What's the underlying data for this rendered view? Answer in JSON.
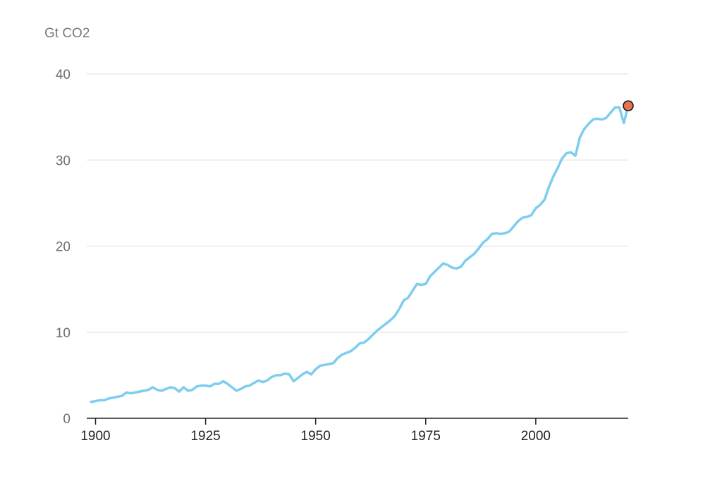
{
  "chart_data": {
    "type": "line",
    "ylabel": "Gt CO2",
    "xlim": [
      1898,
      2021
    ],
    "ylim": [
      0,
      40
    ],
    "grid": true,
    "x_ticks": [
      1900,
      1925,
      1950,
      1975,
      2000
    ],
    "y_ticks": [
      0,
      10,
      20,
      30,
      40
    ],
    "line_color": "#7dcdee",
    "marker_color": "#e8714f",
    "highlight_point": {
      "x": 2021,
      "y": 36.3
    },
    "series": [
      {
        "x": [
          1899,
          1900,
          1901,
          1902,
          1903,
          1904,
          1905,
          1906,
          1907,
          1908,
          1909,
          1910,
          1911,
          1912,
          1913,
          1914,
          1915,
          1916,
          1917,
          1918,
          1919,
          1920,
          1921,
          1922,
          1923,
          1924,
          1925,
          1926,
          1927,
          1928,
          1929,
          1930,
          1931,
          1932,
          1933,
          1934,
          1935,
          1936,
          1937,
          1938,
          1939,
          1940,
          1941,
          1942,
          1943,
          1944,
          1945,
          1946,
          1947,
          1948,
          1949,
          1950,
          1951,
          1952,
          1953,
          1954,
          1955,
          1956,
          1957,
          1958,
          1959,
          1960,
          1961,
          1962,
          1963,
          1964,
          1965,
          1966,
          1967,
          1968,
          1969,
          1970,
          1971,
          1972,
          1973,
          1974,
          1975,
          1976,
          1977,
          1978,
          1979,
          1980,
          1981,
          1982,
          1983,
          1984,
          1985,
          1986,
          1987,
          1988,
          1989,
          1990,
          1991,
          1992,
          1993,
          1994,
          1995,
          1996,
          1997,
          1998,
          1999,
          2000,
          2001,
          2002,
          2003,
          2004,
          2005,
          2006,
          2007,
          2008,
          2009,
          2010,
          2011,
          2012,
          2013,
          2014,
          2015,
          2016,
          2017,
          2018,
          2019,
          2020,
          2021
        ],
        "values": [
          1.9,
          2.0,
          2.1,
          2.1,
          2.3,
          2.4,
          2.5,
          2.6,
          3.0,
          2.9,
          3.0,
          3.1,
          3.2,
          3.3,
          3.6,
          3.3,
          3.2,
          3.4,
          3.6,
          3.5,
          3.1,
          3.6,
          3.2,
          3.3,
          3.7,
          3.8,
          3.8,
          3.7,
          4.0,
          4.0,
          4.3,
          4.0,
          3.6,
          3.2,
          3.4,
          3.7,
          3.8,
          4.1,
          4.4,
          4.2,
          4.4,
          4.8,
          5.0,
          5.0,
          5.2,
          5.1,
          4.3,
          4.7,
          5.1,
          5.4,
          5.1,
          5.7,
          6.1,
          6.2,
          6.3,
          6.4,
          7.0,
          7.4,
          7.6,
          7.8,
          8.2,
          8.7,
          8.8,
          9.2,
          9.7,
          10.2,
          10.6,
          11.0,
          11.4,
          11.9,
          12.7,
          13.7,
          14.0,
          14.8,
          15.6,
          15.5,
          15.6,
          16.5,
          17.0,
          17.5,
          18.0,
          17.8,
          17.5,
          17.4,
          17.6,
          18.3,
          18.7,
          19.1,
          19.7,
          20.4,
          20.8,
          21.4,
          21.5,
          21.4,
          21.5,
          21.7,
          22.3,
          22.9,
          23.3,
          23.4,
          23.6,
          24.4,
          24.8,
          25.4,
          26.9,
          28.1,
          29.1,
          30.2,
          30.8,
          30.9,
          30.5,
          32.6,
          33.6,
          34.2,
          34.7,
          34.8,
          34.7,
          34.9,
          35.5,
          36.1,
          36.1,
          34.3,
          36.3
        ]
      }
    ]
  }
}
